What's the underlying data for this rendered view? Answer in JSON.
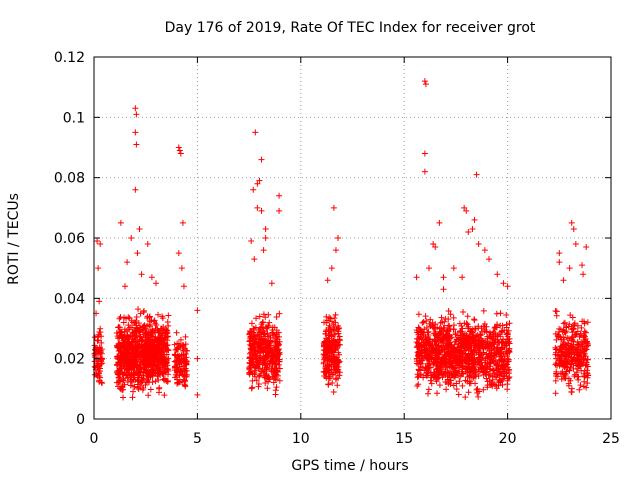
{
  "chart_data": {
    "type": "scatter",
    "title": "Day 176 of 2019, Rate Of TEC Index for receiver grot",
    "xlabel": "GPS time / hours",
    "ylabel": "ROTI / TECUs",
    "xlim": [
      0,
      25
    ],
    "ylim": [
      0,
      0.12
    ],
    "x_ticks": [
      0,
      5,
      10,
      15,
      20,
      25
    ],
    "y_ticks": [
      0,
      0.02,
      0.04,
      0.06,
      0.08,
      0.1,
      0.12
    ],
    "x_tick_labels": [
      "0",
      "5",
      "10",
      "15",
      "20",
      "25"
    ],
    "y_tick_labels": [
      "0",
      "0.02",
      "0.04",
      "0.06",
      "0.08",
      "0.1",
      "0.12"
    ],
    "grid": true,
    "marker": "+",
    "color": "#ff0000",
    "clusters": [
      {
        "x_range": [
          0.0,
          0.4
        ],
        "y_range": [
          0.006,
          0.03
        ],
        "count": 70
      },
      {
        "x_range": [
          1.1,
          3.6
        ],
        "y_range": [
          0.005,
          0.035
        ],
        "count": 900
      },
      {
        "x_range": [
          3.9,
          4.5
        ],
        "y_range": [
          0.006,
          0.03
        ],
        "count": 120
      },
      {
        "x_range": [
          7.5,
          9.0
        ],
        "y_range": [
          0.006,
          0.035
        ],
        "count": 380
      },
      {
        "x_range": [
          11.1,
          11.9
        ],
        "y_range": [
          0.007,
          0.035
        ],
        "count": 220
      },
      {
        "x_range": [
          15.6,
          20.1
        ],
        "y_range": [
          0.005,
          0.035
        ],
        "count": 1100
      },
      {
        "x_range": [
          22.3,
          23.9
        ],
        "y_range": [
          0.006,
          0.035
        ],
        "count": 300
      }
    ],
    "points": [
      [
        0.15,
        0.059
      ],
      [
        0.2,
        0.05
      ],
      [
        0.25,
        0.039
      ],
      [
        0.1,
        0.035
      ],
      [
        0.3,
        0.058
      ],
      [
        2.0,
        0.103
      ],
      [
        2.05,
        0.101
      ],
      [
        2.0,
        0.095
      ],
      [
        2.05,
        0.091
      ],
      [
        2.0,
        0.076
      ],
      [
        1.3,
        0.065
      ],
      [
        1.8,
        0.06
      ],
      [
        2.2,
        0.063
      ],
      [
        2.6,
        0.058
      ],
      [
        2.1,
        0.055
      ],
      [
        1.6,
        0.052
      ],
      [
        2.3,
        0.048
      ],
      [
        3.0,
        0.045
      ],
      [
        1.5,
        0.044
      ],
      [
        2.8,
        0.047
      ],
      [
        4.1,
        0.09
      ],
      [
        4.15,
        0.089
      ],
      [
        4.2,
        0.088
      ],
      [
        4.3,
        0.065
      ],
      [
        4.1,
        0.055
      ],
      [
        4.25,
        0.05
      ],
      [
        4.35,
        0.044
      ],
      [
        5.0,
        0.036
      ],
      [
        5.0,
        0.02
      ],
      [
        5.0,
        0.008
      ],
      [
        7.8,
        0.095
      ],
      [
        8.1,
        0.086
      ],
      [
        8.0,
        0.079
      ],
      [
        7.9,
        0.078
      ],
      [
        7.7,
        0.076
      ],
      [
        8.1,
        0.069
      ],
      [
        7.9,
        0.07
      ],
      [
        8.95,
        0.074
      ],
      [
        8.95,
        0.069
      ],
      [
        8.3,
        0.063
      ],
      [
        8.3,
        0.06
      ],
      [
        7.6,
        0.059
      ],
      [
        8.2,
        0.056
      ],
      [
        7.75,
        0.053
      ],
      [
        8.6,
        0.045
      ],
      [
        11.6,
        0.07
      ],
      [
        11.8,
        0.06
      ],
      [
        11.7,
        0.056
      ],
      [
        11.5,
        0.05
      ],
      [
        11.3,
        0.046
      ],
      [
        16.0,
        0.112
      ],
      [
        16.05,
        0.111
      ],
      [
        16.0,
        0.088
      ],
      [
        16.0,
        0.082
      ],
      [
        16.7,
        0.065
      ],
      [
        16.4,
        0.058
      ],
      [
        16.5,
        0.057
      ],
      [
        16.2,
        0.05
      ],
      [
        15.6,
        0.047
      ],
      [
        16.9,
        0.047
      ],
      [
        17.9,
        0.07
      ],
      [
        18.0,
        0.069
      ],
      [
        18.4,
        0.066
      ],
      [
        18.5,
        0.081
      ],
      [
        18.3,
        0.063
      ],
      [
        18.1,
        0.062
      ],
      [
        18.6,
        0.058
      ],
      [
        18.9,
        0.056
      ],
      [
        19.1,
        0.053
      ],
      [
        19.5,
        0.048
      ],
      [
        17.4,
        0.05
      ],
      [
        17.8,
        0.047
      ],
      [
        19.8,
        0.045
      ],
      [
        20.0,
        0.044
      ],
      [
        16.9,
        0.043
      ],
      [
        23.1,
        0.065
      ],
      [
        23.2,
        0.063
      ],
      [
        23.3,
        0.058
      ],
      [
        22.5,
        0.055
      ],
      [
        22.5,
        0.052
      ],
      [
        23.0,
        0.05
      ],
      [
        23.8,
        0.057
      ],
      [
        23.6,
        0.051
      ],
      [
        23.65,
        0.048
      ],
      [
        22.7,
        0.046
      ]
    ]
  }
}
